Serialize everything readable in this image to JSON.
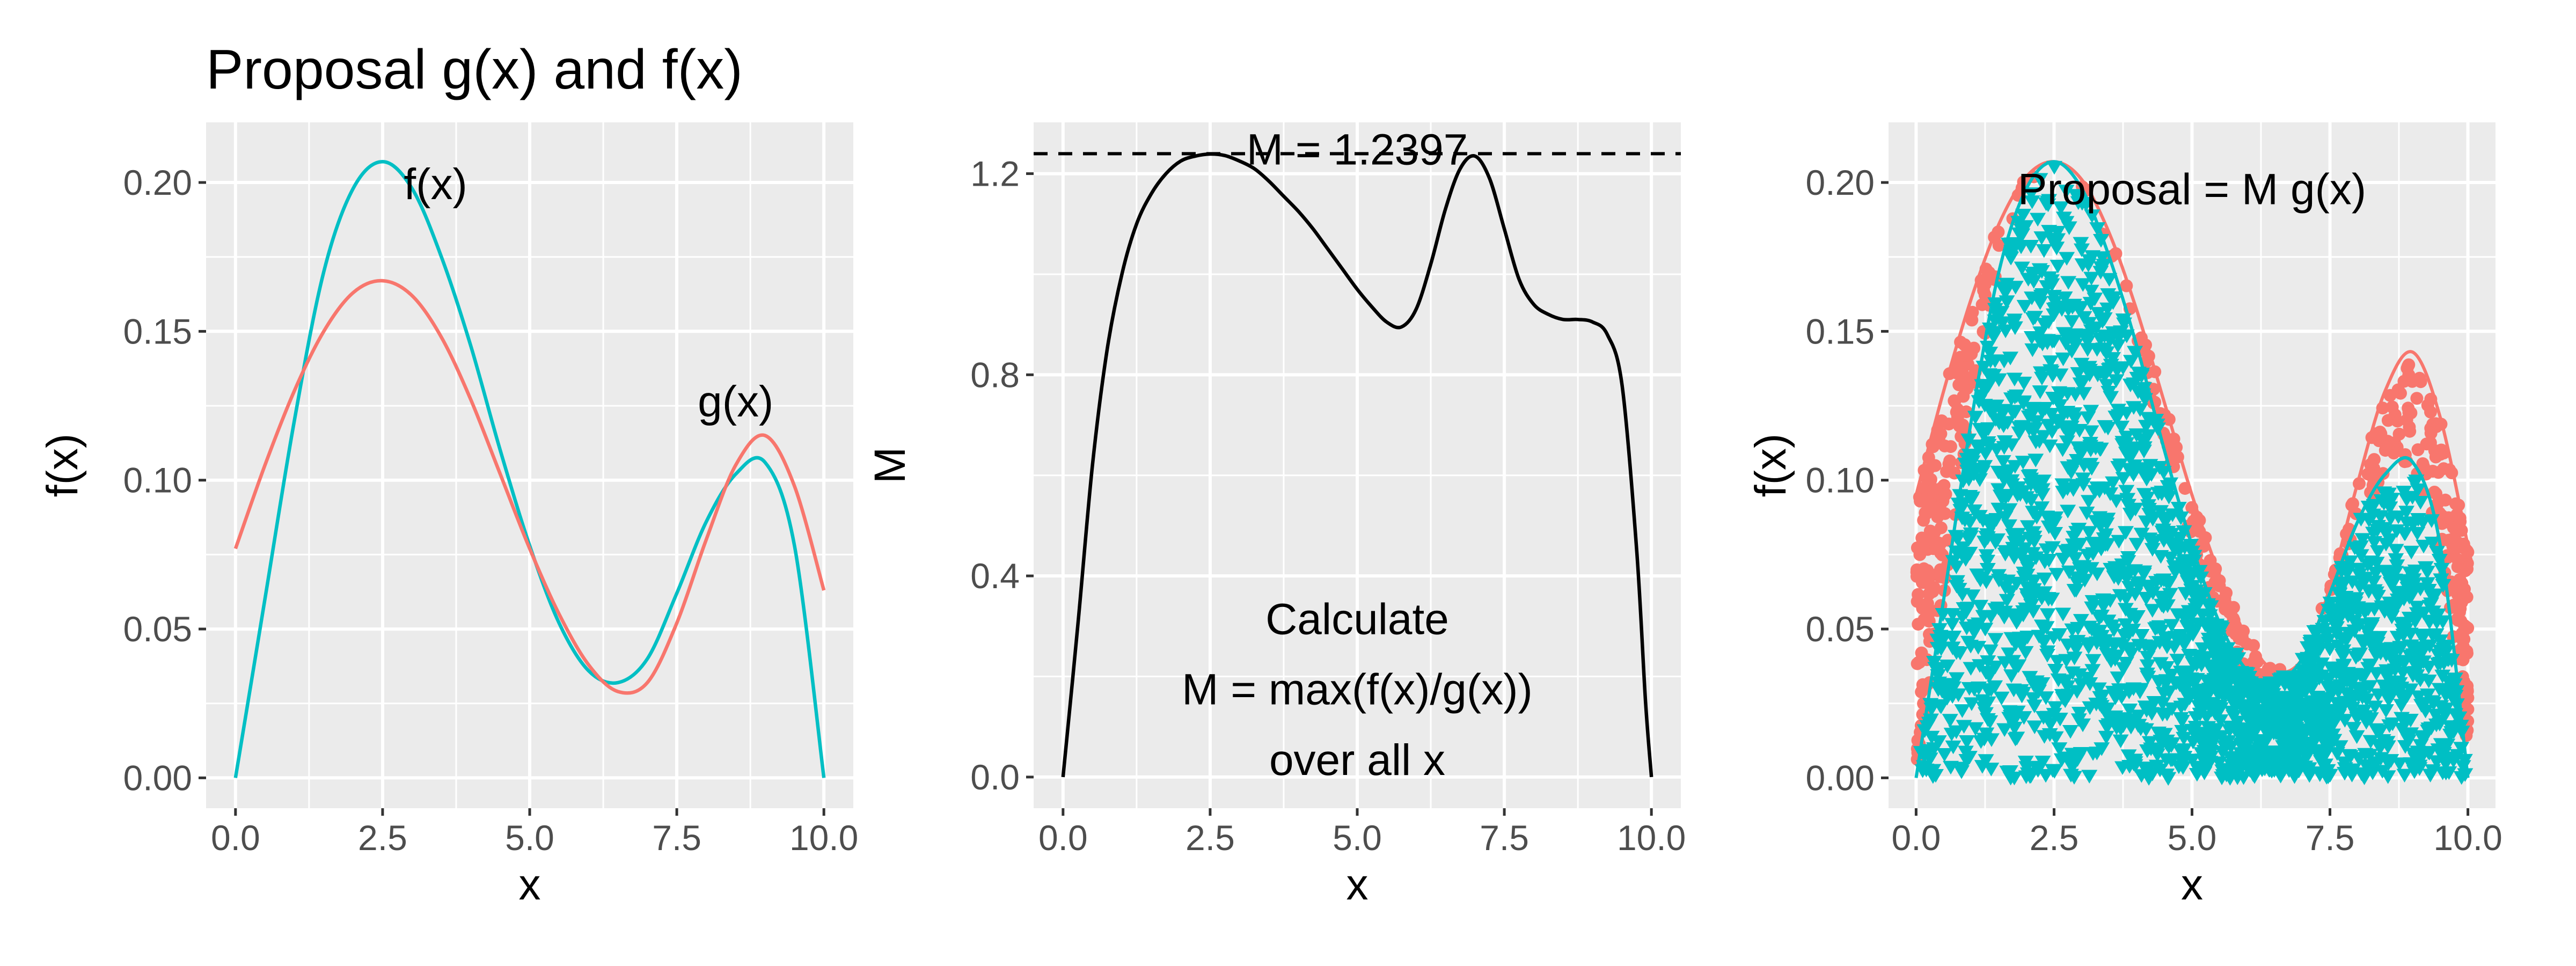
{
  "figure_title": "Proposal g(x) and f(x)",
  "colors": {
    "f": "#00BFC4",
    "g": "#F8766D",
    "ratio": "#000000",
    "panel": "#EBEBEB"
  },
  "chart_data": [
    {
      "type": "line",
      "title": "Proposal g(x) and f(x)",
      "xlabel": "x",
      "ylabel": "f(x)",
      "xlim": [
        0,
        10
      ],
      "ylim": [
        0,
        0.21
      ],
      "x_ticks": [
        "0.0",
        "2.5",
        "5.0",
        "7.5",
        "10.0"
      ],
      "y_ticks": [
        "0.00",
        "0.05",
        "0.10",
        "0.15",
        "0.20"
      ],
      "series": [
        {
          "name": "f(x)",
          "color": "#00BFC4",
          "x": [
            0,
            0.5,
            1,
            1.5,
            2,
            2.5,
            3,
            3.5,
            4,
            4.5,
            5,
            5.5,
            6,
            6.5,
            7,
            7.5,
            8,
            8.5,
            9,
            9.5,
            10
          ],
          "y": [
            0.0,
            0.06,
            0.12,
            0.17,
            0.198,
            0.207,
            0.198,
            0.175,
            0.145,
            0.11,
            0.078,
            0.052,
            0.036,
            0.032,
            0.04,
            0.062,
            0.086,
            0.102,
            0.106,
            0.078,
            0.0
          ]
        },
        {
          "name": "g(x)",
          "color": "#F8766D",
          "x": [
            0,
            0.5,
            1,
            1.5,
            2,
            2.5,
            3,
            3.5,
            4,
            4.5,
            5,
            5.5,
            6,
            6.5,
            7,
            7.5,
            8,
            8.5,
            9,
            9.5,
            10
          ],
          "y": [
            0.077,
            0.105,
            0.13,
            0.15,
            0.163,
            0.167,
            0.162,
            0.148,
            0.127,
            0.102,
            0.077,
            0.055,
            0.038,
            0.029,
            0.032,
            0.052,
            0.08,
            0.105,
            0.115,
            0.098,
            0.063
          ]
        }
      ],
      "annotations": [
        {
          "text": "f(x)",
          "x": 3.4,
          "y": 0.198
        },
        {
          "text": "g(x)",
          "x": 8.5,
          "y": 0.125
        }
      ]
    },
    {
      "type": "line",
      "xlabel": "x",
      "ylabel": "M",
      "xlim": [
        0,
        10
      ],
      "ylim": [
        0,
        1.24
      ],
      "x_ticks": [
        "0.0",
        "2.5",
        "5.0",
        "7.5",
        "10.0"
      ],
      "y_ticks": [
        "0.0",
        "0.4",
        "0.8",
        "1.2"
      ],
      "series": [
        {
          "name": "f(x)/g(x)",
          "color": "#000000",
          "x": [
            0,
            0.25,
            0.5,
            0.75,
            1,
            1.25,
            1.5,
            1.75,
            2,
            2.25,
            2.5,
            2.75,
            3,
            3.25,
            3.5,
            3.75,
            4,
            4.25,
            4.5,
            4.75,
            5,
            5.25,
            5.5,
            5.75,
            6,
            6.25,
            6.5,
            6.75,
            7,
            7.25,
            7.5,
            7.75,
            8,
            8.25,
            8.5,
            8.75,
            9,
            9.25,
            9.5,
            9.75,
            9.9,
            10
          ],
          "y": [
            0.0,
            0.3,
            0.62,
            0.85,
            1.0,
            1.1,
            1.16,
            1.2,
            1.225,
            1.235,
            1.239,
            1.236,
            1.225,
            1.21,
            1.185,
            1.155,
            1.125,
            1.09,
            1.05,
            1.01,
            0.97,
            0.935,
            0.905,
            0.895,
            0.93,
            1.02,
            1.13,
            1.21,
            1.235,
            1.19,
            1.09,
            0.99,
            0.94,
            0.92,
            0.91,
            0.91,
            0.905,
            0.88,
            0.78,
            0.45,
            0.15,
            0.0
          ]
        }
      ],
      "hline": {
        "y": 1.2397,
        "label": "M = 1.2397",
        "style": "dashed"
      },
      "annotations": [
        {
          "text": "Calculate",
          "x": 5.0,
          "y": 0.31
        },
        {
          "text": "M = max(f(x)/g(x))",
          "x": 5.0,
          "y": 0.17
        },
        {
          "text": "over all x",
          "x": 5.0,
          "y": 0.03
        }
      ]
    },
    {
      "type": "scatter",
      "xlabel": "x",
      "ylabel": "f(x)",
      "xlim": [
        0,
        10
      ],
      "ylim": [
        0,
        0.21
      ],
      "x_ticks": [
        "0.0",
        "2.5",
        "5.0",
        "7.5",
        "10.0"
      ],
      "y_ticks": [
        "0.00",
        "0.05",
        "0.10",
        "0.15",
        "0.20"
      ],
      "series": [
        {
          "name": "Proposal = M g(x)",
          "color": "#F8766D",
          "marker": "circle",
          "envelope_x": [
            0,
            0.5,
            1,
            1.5,
            2,
            2.5,
            3,
            3.5,
            4,
            4.5,
            5,
            5.5,
            6,
            6.5,
            7,
            7.5,
            8,
            8.5,
            9,
            9.5,
            10
          ],
          "envelope_y": [
            0.095,
            0.13,
            0.161,
            0.186,
            0.202,
            0.207,
            0.201,
            0.183,
            0.157,
            0.126,
            0.095,
            0.068,
            0.047,
            0.036,
            0.04,
            0.064,
            0.099,
            0.13,
            0.143,
            0.121,
            0.078
          ]
        },
        {
          "name": "f(x)",
          "color": "#00BFC4",
          "marker": "triangle-down",
          "envelope_x": [
            0,
            0.5,
            1,
            1.5,
            2,
            2.5,
            3,
            3.5,
            4,
            4.5,
            5,
            5.5,
            6,
            6.5,
            7,
            7.5,
            8,
            8.5,
            9,
            9.5,
            10
          ],
          "envelope_y": [
            0.0,
            0.06,
            0.12,
            0.17,
            0.198,
            0.207,
            0.198,
            0.175,
            0.145,
            0.11,
            0.078,
            0.052,
            0.036,
            0.032,
            0.04,
            0.062,
            0.086,
            0.102,
            0.106,
            0.078,
            0.0
          ]
        }
      ],
      "annotations": [
        {
          "text": "Proposal = M g(x)",
          "x": 5.0,
          "y": 0.197
        }
      ]
    }
  ]
}
